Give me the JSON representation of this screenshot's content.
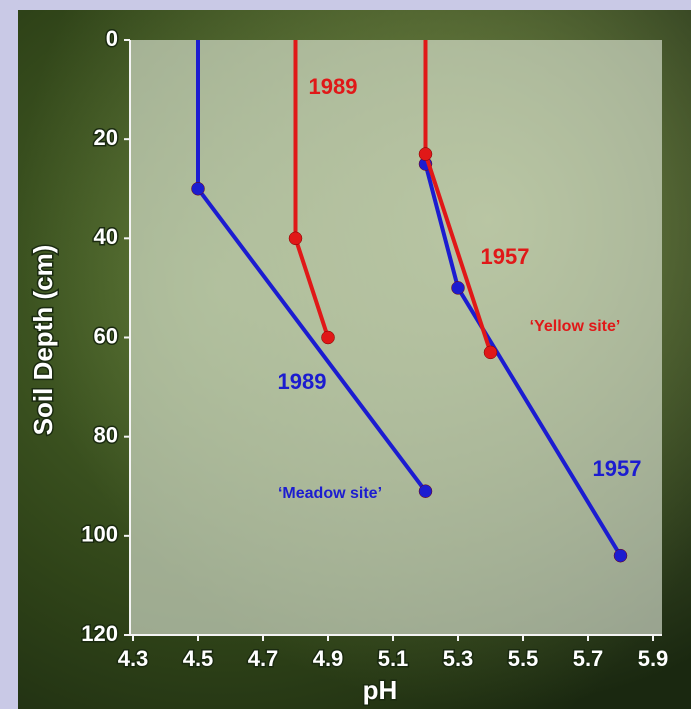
{
  "chart_data": {
    "type": "line",
    "x_label": "pH",
    "y_label": "Soil Depth (cm)",
    "xlim": [
      4.3,
      5.9
    ],
    "xticks": [
      4.3,
      4.5,
      4.7,
      4.9,
      5.1,
      5.3,
      5.5,
      5.7,
      5.9
    ],
    "ylim": [
      0,
      120
    ],
    "yticks": [
      0,
      20,
      40,
      60,
      80,
      100,
      120
    ],
    "y_inverted": true,
    "series": [
      {
        "name": "1989",
        "color": "#1c1cd0",
        "x": [
          4.5,
          4.5,
          5.2
        ],
        "values": [
          0,
          30,
          91
        ]
      },
      {
        "name": "1989",
        "color": "#e01818",
        "x": [
          4.8,
          4.8,
          4.9
        ],
        "values": [
          0,
          40,
          60
        ]
      },
      {
        "name": "1957",
        "color": "#1c1cd0",
        "x": [
          5.2,
          5.2,
          5.3,
          5.8
        ],
        "values": [
          0,
          25,
          50,
          104
        ]
      },
      {
        "name": "1957",
        "color": "#e01818",
        "x": [
          5.2,
          5.2,
          5.4
        ],
        "values": [
          0,
          23,
          63
        ]
      }
    ],
    "annotations": [
      {
        "text": "‘Meadow site’",
        "color": "#1c1cd0"
      },
      {
        "text": "‘Yellow site’",
        "color": "#e01818"
      }
    ]
  }
}
